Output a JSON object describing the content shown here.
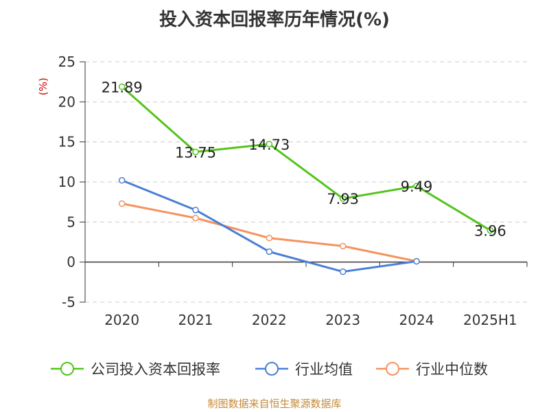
{
  "title": "投入资本回报率历年情况(%)",
  "footer": "制图数据来自恒生聚源数据库",
  "chart_data": {
    "type": "line",
    "title": "投入资本回报率历年情况(%)",
    "ylabel": "(%)",
    "xlabel": "",
    "categories": [
      "2020",
      "2021",
      "2022",
      "2023",
      "2024",
      "2025H1"
    ],
    "ylim": [
      -5,
      25
    ],
    "yticks": [
      25,
      20,
      15,
      10,
      5,
      0,
      -5
    ],
    "grid": true,
    "legend_position": "bottom",
    "series": [
      {
        "name": "公司投入资本回报率",
        "color": "#52c41a",
        "values": [
          21.89,
          13.75,
          14.73,
          7.93,
          9.49,
          3.96
        ],
        "labels": [
          "21.89",
          "13.75",
          "14.73",
          "7.93",
          "9.49",
          "3.96"
        ]
      },
      {
        "name": "行业均值",
        "color": "#4a7fd6",
        "values": [
          10.2,
          6.5,
          1.3,
          -1.2,
          0.1,
          null
        ]
      },
      {
        "name": "行业中位数",
        "color": "#f5925e",
        "values": [
          7.3,
          5.5,
          3.0,
          2.0,
          0.1,
          null
        ]
      }
    ]
  }
}
